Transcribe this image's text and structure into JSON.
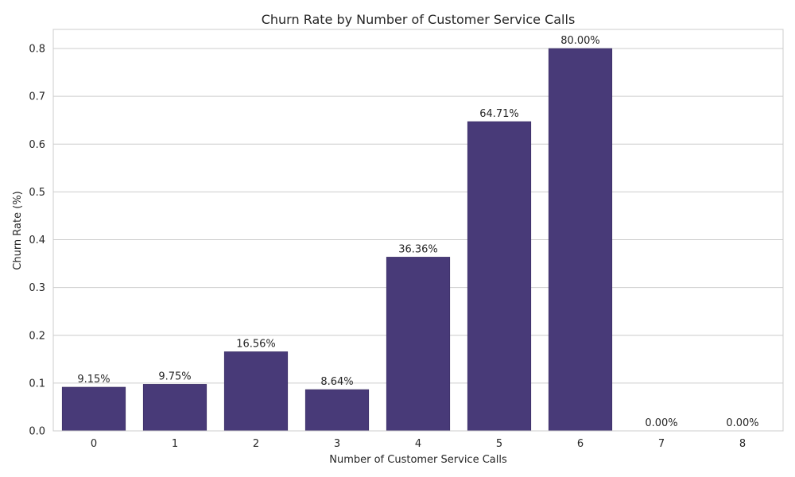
{
  "chart_data": {
    "type": "bar",
    "title": "Churn Rate by Number of Customer Service Calls",
    "xlabel": "Number of Customer Service Calls",
    "ylabel": "Churn Rate (%)",
    "categories": [
      "0",
      "1",
      "2",
      "3",
      "4",
      "5",
      "6",
      "7",
      "8"
    ],
    "values": [
      0.0915,
      0.0975,
      0.1656,
      0.0864,
      0.3636,
      0.6471,
      0.8,
      0.0,
      0.0
    ],
    "data_labels": [
      "9.15%",
      "9.75%",
      "16.56%",
      "8.64%",
      "36.36%",
      "64.71%",
      "80.00%",
      "0.00%",
      "0.00%"
    ],
    "ylim": [
      0,
      0.84
    ],
    "yticks": [
      0.0,
      0.1,
      0.2,
      0.3,
      0.4,
      0.5,
      0.6,
      0.7,
      0.8
    ],
    "ytick_labels": [
      "0.0",
      "0.1",
      "0.2",
      "0.3",
      "0.4",
      "0.5",
      "0.6",
      "0.7",
      "0.8"
    ],
    "grid": "horizontal",
    "bar_color": "#483a78"
  }
}
